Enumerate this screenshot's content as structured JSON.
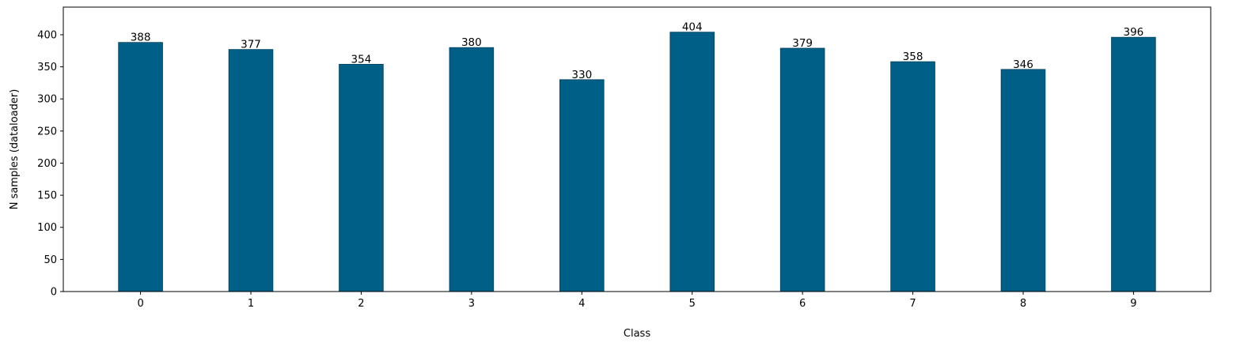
{
  "chart_data": {
    "type": "bar",
    "title": "",
    "xlabel": "Class",
    "ylabel": "N samples (dataloader)",
    "categories": [
      "0",
      "1",
      "2",
      "3",
      "4",
      "5",
      "6",
      "7",
      "8",
      "9"
    ],
    "values": [
      388,
      377,
      354,
      380,
      330,
      404,
      379,
      358,
      346,
      396
    ],
    "ylim": [
      0,
      443
    ],
    "yticks": [
      0,
      50,
      100,
      150,
      200,
      250,
      300,
      350,
      400
    ],
    "grid": false,
    "legend": "none",
    "bar_color": "#005f87",
    "show_value_labels": true
  }
}
